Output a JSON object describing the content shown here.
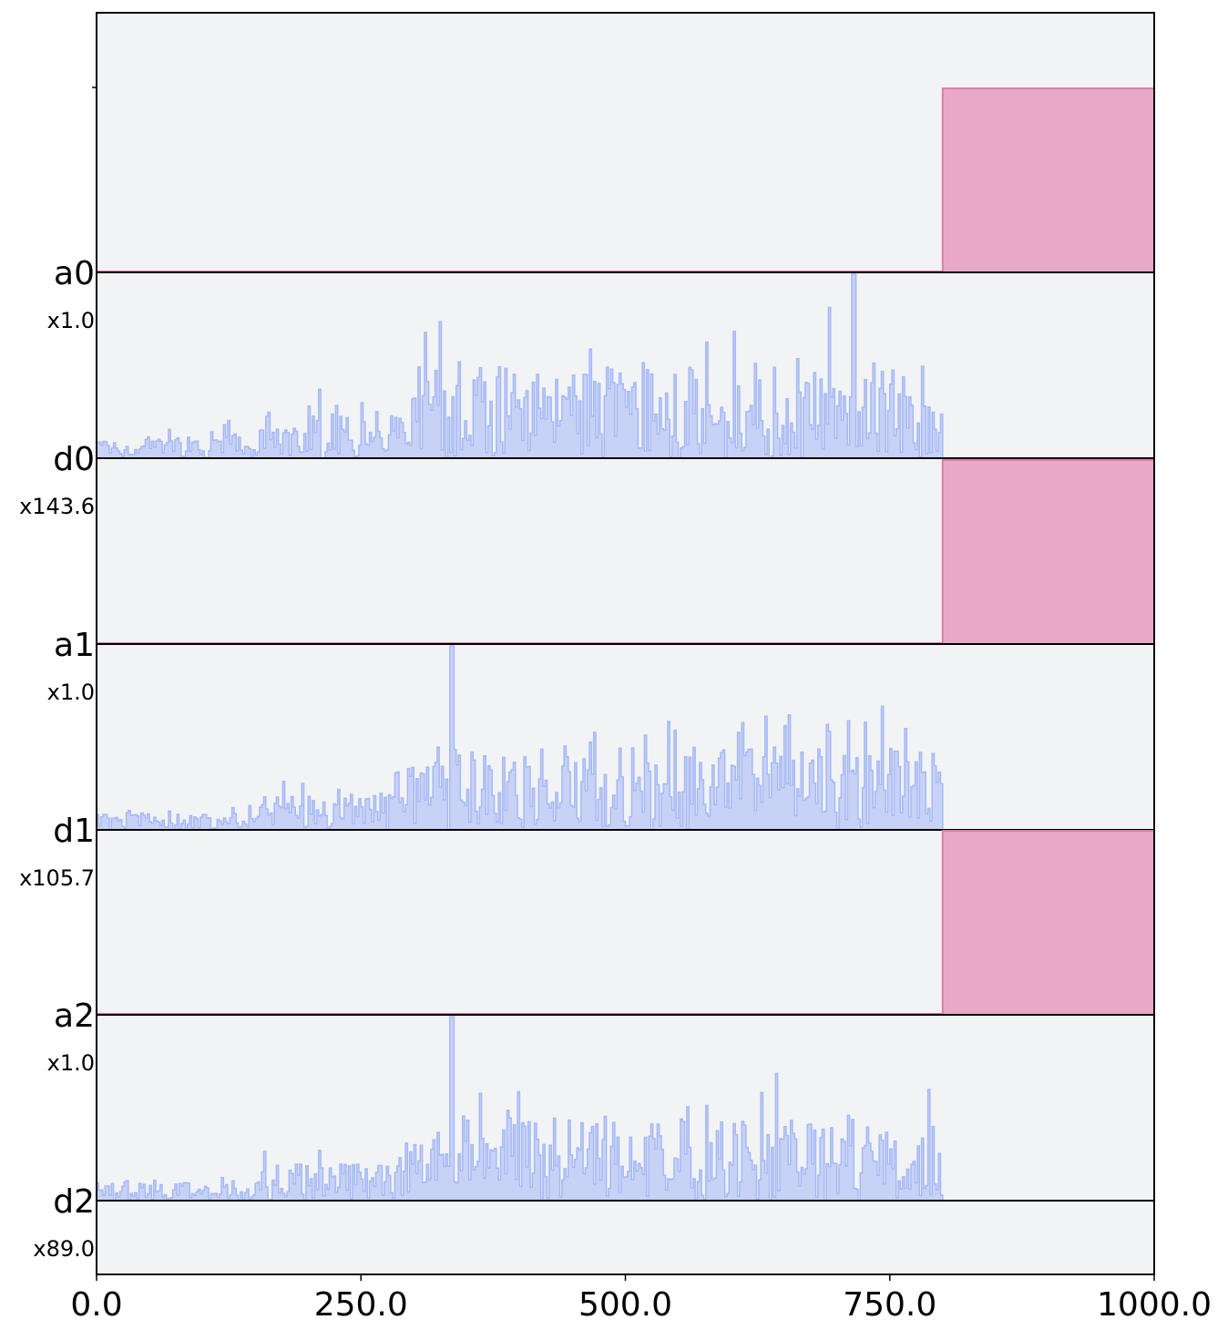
{
  "chart_data": {
    "type": "area",
    "xlim": [
      0,
      1000
    ],
    "x_ticks": [
      "0.0",
      "250.0",
      "500.0",
      "750.0",
      "1000.0"
    ],
    "x_tick_values": [
      0,
      250,
      500,
      750,
      1000
    ],
    "colors": {
      "analog": "#e8a9c9",
      "analog_edge": "#e37aa7",
      "digital": "#c7d2f6",
      "digital_edge": "#a6b9f5",
      "background": "#f2f3f4"
    },
    "channels": [
      {
        "name": "a0",
        "scale": "x1.0",
        "kind": "analog",
        "segments": [
          {
            "x_start": 0,
            "x_end": 800,
            "level": 0
          },
          {
            "x_start": 800,
            "x_end": 1000,
            "level": 1
          }
        ]
      },
      {
        "name": "d0",
        "scale": "x143.6",
        "kind": "digital",
        "x_end": 800,
        "peak_x": 715,
        "peak": 1.0
      },
      {
        "name": "a1",
        "scale": "x1.0",
        "kind": "analog",
        "segments": [
          {
            "x_start": 0,
            "x_end": 800,
            "level": 0
          },
          {
            "x_start": 800,
            "x_end": 1000,
            "level": 1
          }
        ]
      },
      {
        "name": "d1",
        "scale": "x105.7",
        "kind": "digital",
        "x_end": 800,
        "peak_x": 335,
        "peak": 1.0
      },
      {
        "name": "a2",
        "scale": "x1.0",
        "kind": "analog",
        "segments": [
          {
            "x_start": 0,
            "x_end": 800,
            "level": 0
          },
          {
            "x_start": 800,
            "x_end": 1000,
            "level": 1
          }
        ]
      },
      {
        "name": "d2",
        "scale": "x89.0",
        "kind": "digital",
        "x_end": 800,
        "peak_x": 335,
        "peak": 1.0
      }
    ]
  }
}
